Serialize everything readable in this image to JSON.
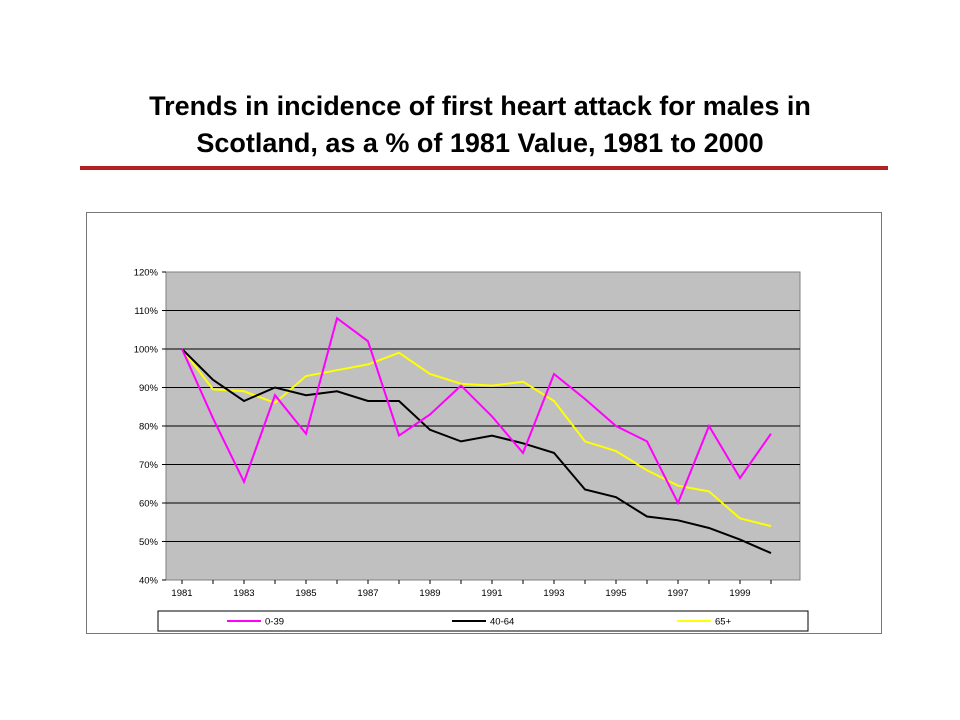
{
  "title": {
    "line1": "Trends in incidence of first heart attack for males in",
    "line2": "Scotland,  as a % of 1981 Value, 1981 to 2000"
  },
  "colors": {
    "rule": "#b22222",
    "plot_bg": "#c0c0c0"
  },
  "chart_data": {
    "type": "line",
    "x": [
      1981,
      1982,
      1983,
      1984,
      1985,
      1986,
      1987,
      1988,
      1989,
      1990,
      1991,
      1992,
      1993,
      1994,
      1995,
      1996,
      1997,
      1998,
      1999,
      2000
    ],
    "x_tick_labels": [
      "1981",
      "1983",
      "1985",
      "1987",
      "1989",
      "1991",
      "1993",
      "1995",
      "1997",
      "1999"
    ],
    "ylim": [
      40,
      120
    ],
    "y_ticks": [
      40,
      50,
      60,
      70,
      80,
      90,
      100,
      110,
      120
    ],
    "y_tick_labels": [
      "40%",
      "50%",
      "60%",
      "70%",
      "80%",
      "90%",
      "100%",
      "110%",
      "120%"
    ],
    "grid": "horizontal",
    "legend_position": "bottom",
    "series": [
      {
        "name": "0-39",
        "color": "#ff00ff",
        "values": [
          100,
          82,
          65.5,
          88,
          78,
          108,
          102,
          77.5,
          83,
          90.5,
          82.5,
          73,
          93.5,
          87,
          80,
          76,
          60,
          80,
          66.5,
          78
        ]
      },
      {
        "name": "40-64",
        "color": "#000000",
        "values": [
          100,
          92,
          86.5,
          90,
          88,
          89,
          86.5,
          86.5,
          79,
          76,
          77.5,
          75.5,
          73,
          63.5,
          61.5,
          56.5,
          55.5,
          53.5,
          50.5,
          47
        ]
      },
      {
        "name": "65+",
        "color": "#ffff00",
        "values": [
          100,
          89.5,
          89,
          86,
          93,
          94.5,
          96,
          99,
          93.5,
          91,
          90.5,
          91.5,
          86.5,
          76,
          73.5,
          68.5,
          64.5,
          63,
          56,
          54
        ]
      }
    ]
  }
}
